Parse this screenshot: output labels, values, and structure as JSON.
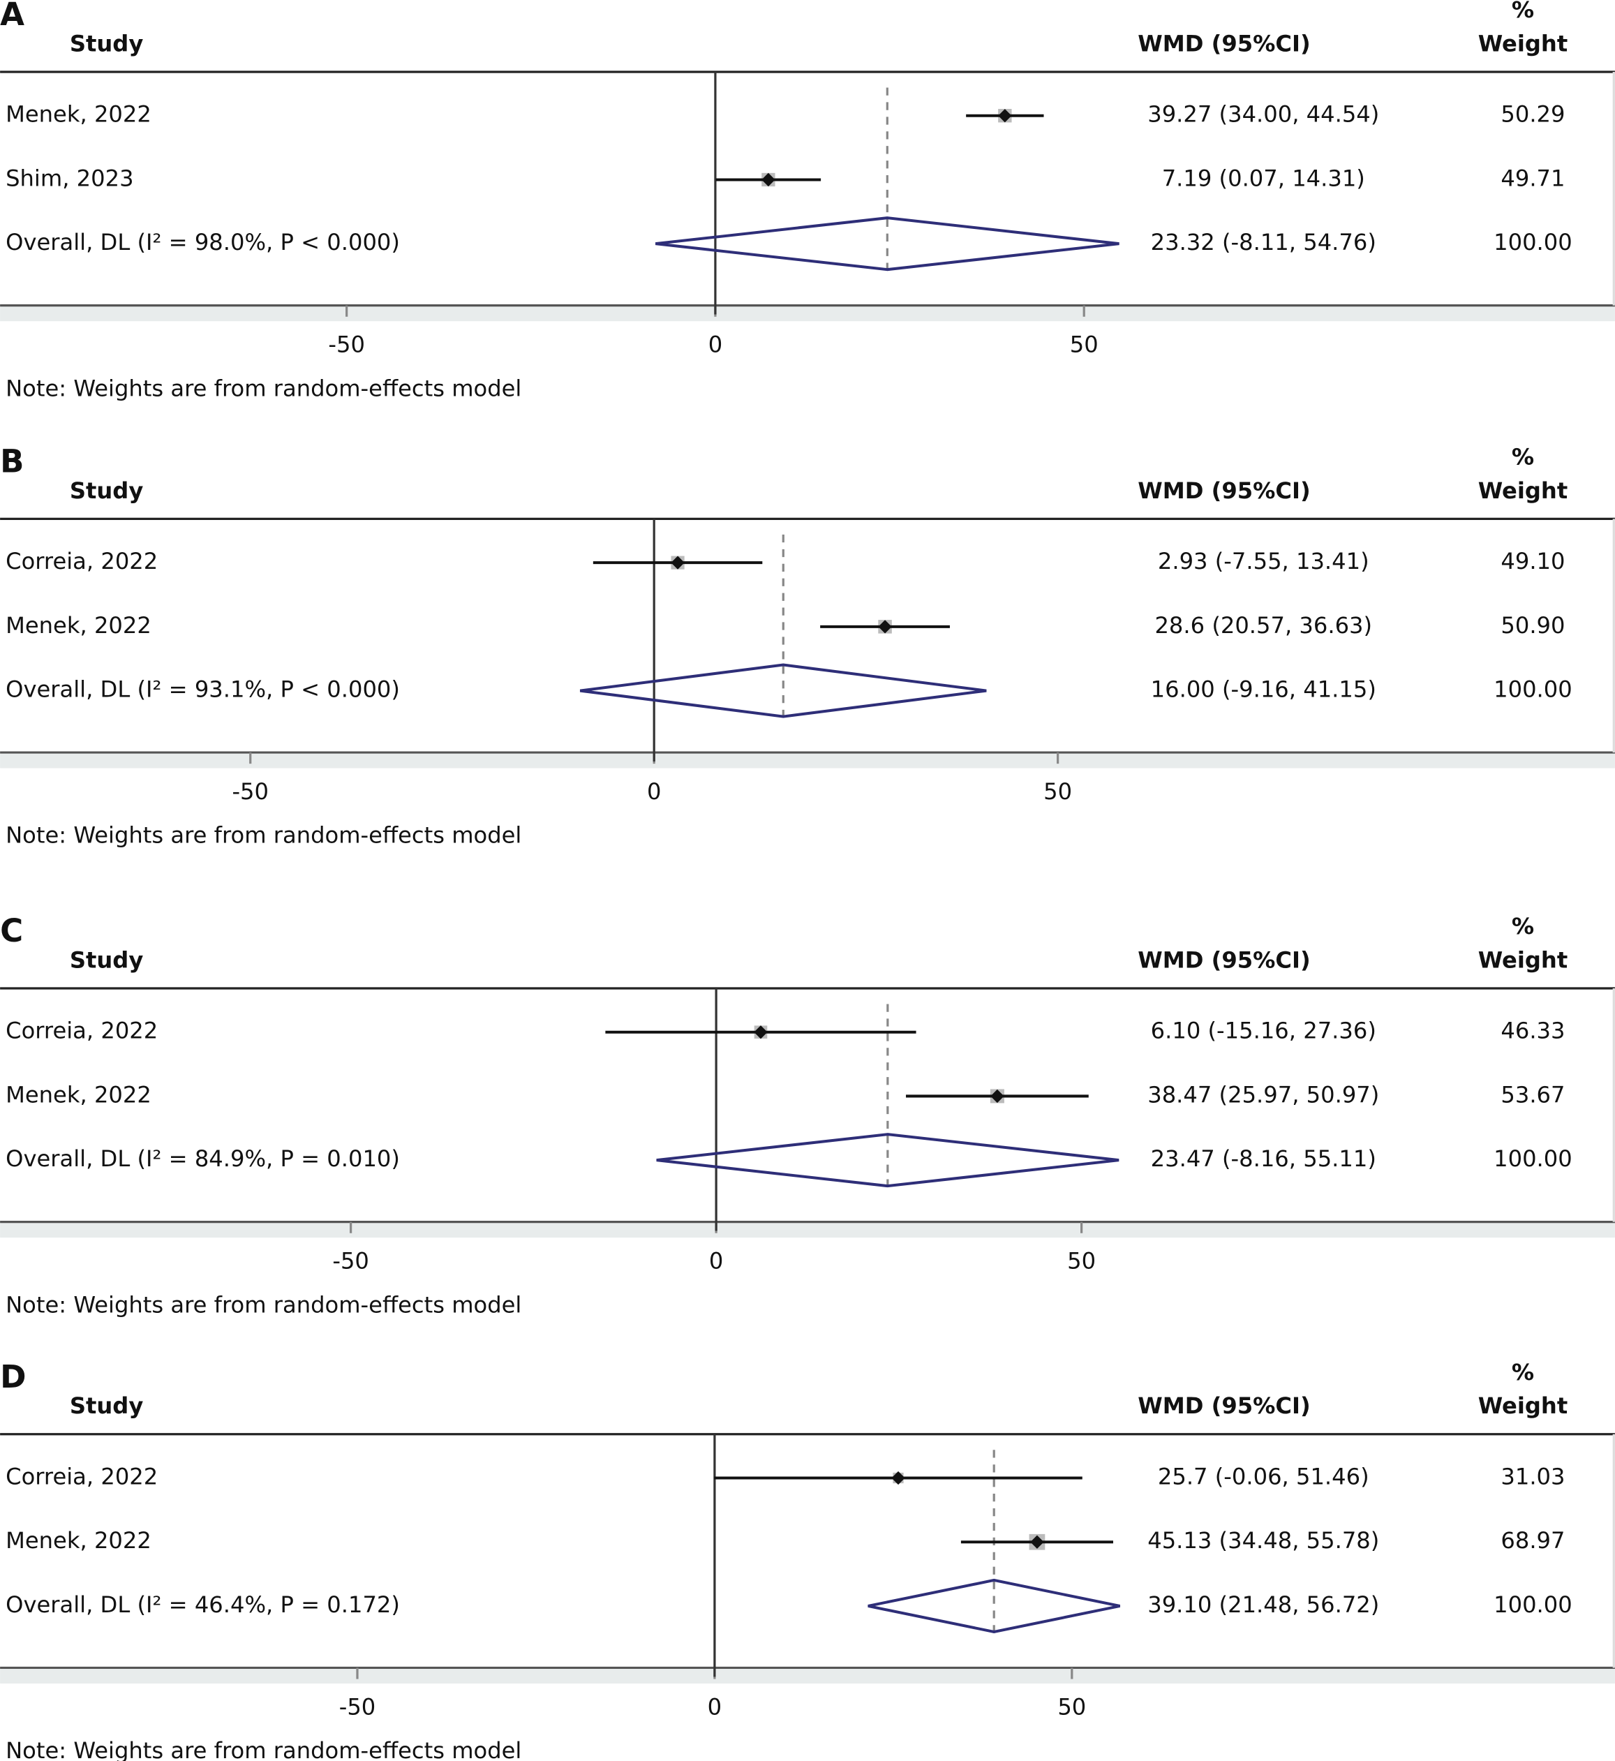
{
  "chart_data": [
    {
      "type": "forest",
      "label": "A",
      "headers": {
        "study": "Study",
        "effect": "WMD (95%CI)",
        "weight_top": "%",
        "weight": "Weight"
      },
      "studies": [
        {
          "name": "Menek, 2022",
          "estimate": 39.27,
          "lower": 34.0,
          "upper": 44.54,
          "ci_label": "39.27 (34.00, 44.54)",
          "weight": 50.29,
          "weight_label": "50.29"
        },
        {
          "name": "Shim, 2023",
          "estimate": 7.19,
          "lower": 0.07,
          "upper": 14.31,
          "ci_label": "7.19 (0.07, 14.31)",
          "weight": 49.71,
          "weight_label": "49.71"
        }
      ],
      "overall": {
        "name": "Overall, DL (I² = 98.0%, P < 0.000)",
        "estimate": 23.32,
        "lower": -8.11,
        "upper": 54.76,
        "ci_label": "23.32 (-8.11, 54.76)",
        "weight": 100,
        "weight_label": "100.00"
      },
      "xlim": [
        -97,
        122
      ],
      "xticks": [
        -50,
        0,
        50
      ],
      "note": "Note: Weights are from random-effects model"
    },
    {
      "type": "forest",
      "label": "B",
      "headers": {
        "study": "Study",
        "effect": "WMD (95%CI)",
        "weight_top": "%",
        "weight": "Weight"
      },
      "studies": [
        {
          "name": "Correia, 2022",
          "estimate": 2.93,
          "lower": -7.55,
          "upper": 13.41,
          "ci_label": "2.93 (-7.55, 13.41)",
          "weight": 49.1,
          "weight_label": "49.10"
        },
        {
          "name": "Menek, 2022",
          "estimate": 28.6,
          "lower": 20.57,
          "upper": 36.63,
          "ci_label": "28.6 (20.57, 36.63)",
          "weight": 50.9,
          "weight_label": "50.90"
        }
      ],
      "overall": {
        "name": "Overall, DL (I² = 93.1%, P < 0.000)",
        "estimate": 16.0,
        "lower": -9.16,
        "upper": 41.15,
        "ci_label": "16.00 (-9.16, 41.15)",
        "weight": 100,
        "weight_label": "100.00"
      },
      "xlim": [
        -81,
        119
      ],
      "xticks": [
        -50,
        0,
        50
      ],
      "note": "Note: Weights are from random-effects model"
    },
    {
      "type": "forest",
      "label": "C",
      "headers": {
        "study": "Study",
        "effect": "WMD (95%CI)",
        "weight_top": "%",
        "weight": "Weight"
      },
      "studies": [
        {
          "name": "Correia, 2022",
          "estimate": 6.1,
          "lower": -15.16,
          "upper": 27.36,
          "ci_label": "6.10 (-15.16, 27.36)",
          "weight": 46.33,
          "weight_label": "46.33"
        },
        {
          "name": "Menek, 2022",
          "estimate": 38.47,
          "lower": 25.97,
          "upper": 50.97,
          "ci_label": "38.47 (25.97, 50.97)",
          "weight": 53.67,
          "weight_label": "53.67"
        }
      ],
      "overall": {
        "name": "Overall, DL (I² = 84.9%, P = 0.010)",
        "estimate": 23.47,
        "lower": -8.16,
        "upper": 55.11,
        "ci_label": "23.47 (-8.16, 55.11)",
        "weight": 100,
        "weight_label": "100.00"
      },
      "xlim": [
        -98,
        123
      ],
      "xticks": [
        -50,
        0,
        50
      ],
      "note": "Note: Weights are from random-effects model"
    },
    {
      "type": "forest",
      "label": "D",
      "headers": {
        "study": "Study",
        "effect": "WMD (95%CI)",
        "weight_top": "%",
        "weight": "Weight"
      },
      "studies": [
        {
          "name": "Correia, 2022",
          "estimate": 25.7,
          "lower": -0.06,
          "upper": 51.46,
          "ci_label": "25.7 (-0.06, 51.46)",
          "weight": 31.03,
          "weight_label": "31.03"
        },
        {
          "name": "Menek, 2022",
          "estimate": 45.13,
          "lower": 34.48,
          "upper": 55.78,
          "ci_label": "45.13 (34.48, 55.78)",
          "weight": 68.97,
          "weight_label": "68.97"
        }
      ],
      "overall": {
        "name": "Overall, DL (I² = 46.4%, P = 0.172)",
        "estimate": 39.1,
        "lower": 21.48,
        "upper": 56.72,
        "ci_label": "39.10 (21.48, 56.72)",
        "weight": 100,
        "weight_label": "100.00"
      },
      "xlim": [
        -100,
        126
      ],
      "xticks": [
        -50,
        0,
        50
      ],
      "note": "Note: Weights are from random-effects model"
    }
  ]
}
